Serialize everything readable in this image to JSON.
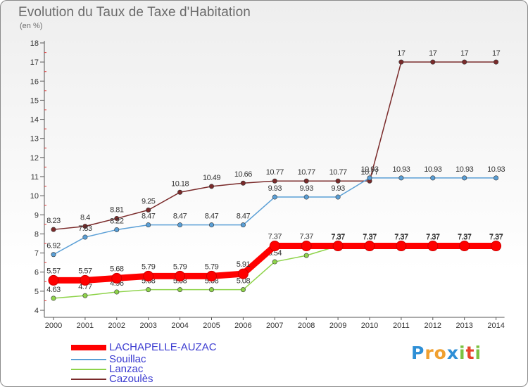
{
  "title": "Evolution du Taux de Taxe d'Habitation",
  "unit": "(en %)",
  "logo": {
    "letters": [
      "P",
      "r",
      "o",
      "x",
      "i",
      "t",
      "i"
    ],
    "colors": [
      "#2e8fd6",
      "#f0a030",
      "#f0a030",
      "#2e8fd6",
      "#7cc242",
      "#e8452c",
      "#7cc242"
    ]
  },
  "legend": [
    {
      "label": "LACHAPELLE-AUZAC",
      "color": "#ff0000"
    },
    {
      "label": "Souillac",
      "color": "#5a9fd6"
    },
    {
      "label": "Lanzac",
      "color": "#8ed34a"
    },
    {
      "label": "Cazoulès",
      "color": "#7a2a2a"
    }
  ],
  "chart_data": {
    "type": "line",
    "title": "Evolution du Taux de Taxe d'Habitation",
    "ylabel": "(en %)",
    "ylim": [
      4,
      18
    ],
    "yticks": [
      4,
      5,
      6,
      7,
      8,
      9,
      10,
      11,
      12,
      13,
      14,
      15,
      16,
      17,
      18
    ],
    "categories": [
      "2000",
      "2001",
      "2002",
      "2003",
      "2004",
      "2005",
      "2006",
      "2007",
      "2008",
      "2009",
      "2010",
      "2011",
      "2012",
      "2013",
      "2014"
    ],
    "series": [
      {
        "name": "Cazoulès",
        "color": "#7a2a2a",
        "values": [
          8.23,
          8.4,
          8.81,
          9.25,
          10.18,
          10.49,
          10.66,
          10.77,
          10.77,
          10.77,
          10.77,
          17,
          17,
          17,
          17
        ]
      },
      {
        "name": "Souillac",
        "color": "#5a9fd6",
        "values": [
          6.92,
          7.83,
          8.22,
          8.47,
          8.47,
          8.47,
          8.47,
          9.93,
          9.93,
          9.93,
          10.93,
          10.93,
          10.93,
          10.93,
          10.93
        ]
      },
      {
        "name": "Lanzac",
        "color": "#8ed34a",
        "values": [
          4.63,
          4.77,
          4.96,
          5.08,
          5.08,
          5.08,
          5.08,
          6.54,
          6.87,
          7.37,
          7.37,
          7.37,
          7.37,
          7.37,
          7.37
        ]
      },
      {
        "name": "LACHAPELLE-AUZAC",
        "color": "#ff0000",
        "values": [
          5.57,
          5.57,
          5.68,
          5.79,
          5.79,
          5.79,
          5.91,
          7.37,
          7.37,
          7.37,
          7.37,
          7.37,
          7.37,
          7.37,
          7.37
        ]
      }
    ]
  }
}
